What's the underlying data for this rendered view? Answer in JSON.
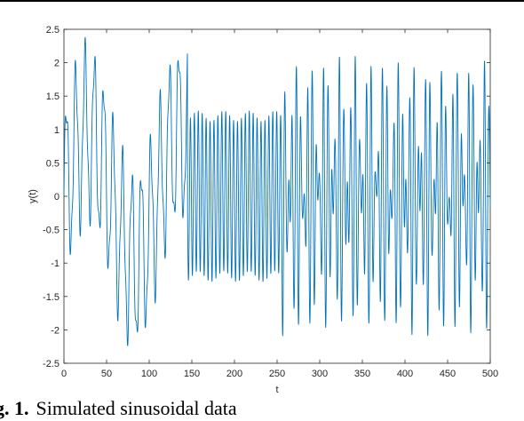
{
  "chart_data": {
    "type": "line",
    "title": "",
    "xlabel": "t",
    "ylabel": "y(t)",
    "xlim": [
      0,
      500
    ],
    "ylim": [
      -2.5,
      2.5
    ],
    "x_ticks": [
      "0",
      "50",
      "100",
      "150",
      "200",
      "250",
      "300",
      "350",
      "400",
      "450",
      "500"
    ],
    "y_ticks": [
      "-2.5",
      "-2",
      "-1.5",
      "-1",
      "-0.5",
      "0",
      "0.5",
      "1",
      "1.5",
      "2",
      "2.5"
    ],
    "grid": false,
    "line_color": "#0072BD",
    "series": [
      {
        "segments": [
          {
            "t_start": 0,
            "t_end": 145,
            "components": [
              {
                "amplitude": 1.2,
                "period": 11
              },
              {
                "amplitude": 0.95,
                "period": 110
              },
              {
                "amplitude": 0.25,
                "period": 4
              }
            ]
          },
          {
            "t_start": 145,
            "t_end": 255,
            "components": [
              {
                "amplitude": 1.2,
                "period": 4.6
              },
              {
                "amplitude": 0.08,
                "period": 30
              }
            ]
          },
          {
            "t_start": 255,
            "t_end": 500,
            "components": [
              {
                "amplitude": 1.05,
                "period": 4.6
              },
              {
                "amplitude": 0.95,
                "period": 6.3
              },
              {
                "amplitude": 0.12,
                "period": 3.1
              }
            ]
          }
        ]
      }
    ]
  },
  "caption": {
    "label": "g. 1.",
    "text": "Simulated sinusoidal data"
  }
}
